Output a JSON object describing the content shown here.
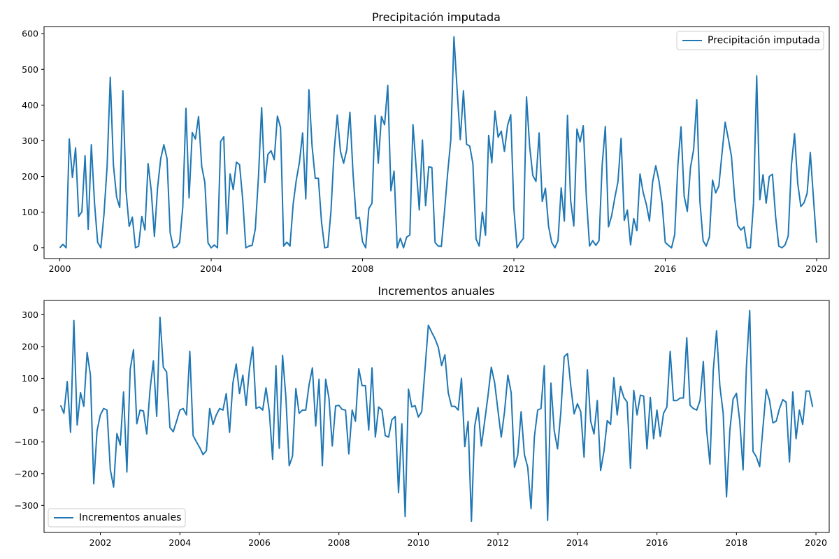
{
  "chart_data": [
    {
      "type": "line",
      "title": "Precipitación imputada",
      "xlabel": "",
      "ylabel": "",
      "x_start": "2000-01",
      "x_frequency": "monthly",
      "xlim": [
        "1999-08",
        "2020-05"
      ],
      "ylim": [
        -30,
        620
      ],
      "xticks": [
        "2000",
        "2004",
        "2008",
        "2012",
        "2016",
        "2020"
      ],
      "yticks": [
        "0",
        "100",
        "200",
        "300",
        "400",
        "500",
        "600"
      ],
      "legend": {
        "position": "top-right"
      },
      "grid": false,
      "series": [
        {
          "name": "Precipitación imputada",
          "color": "#1f77b4",
          "values": [
            0,
            10,
            0,
            305,
            197,
            280,
            88,
            101,
            258,
            52,
            289,
            126,
            15,
            0,
            93,
            228,
            478,
            232,
            143,
            113,
            440,
            160,
            60,
            86,
            0,
            5,
            88,
            50,
            236,
            160,
            32,
            168,
            250,
            289,
            250,
            42,
            0,
            3,
            15,
            115,
            391,
            140,
            323,
            305,
            368,
            228,
            183,
            14,
            0,
            8,
            0,
            298,
            311,
            39,
            207,
            163,
            240,
            233,
            136,
            0,
            5,
            7,
            53,
            199,
            393,
            183,
            262,
            272,
            247,
            369,
            337,
            5,
            16,
            5,
            122,
            190,
            240,
            322,
            137,
            443,
            285,
            195,
            195,
            72,
            0,
            2,
            104,
            272,
            372,
            270,
            237,
            275,
            380,
            207,
            82,
            85,
            17,
            0,
            110,
            125,
            371,
            237,
            368,
            345,
            455,
            160,
            215,
            0,
            27,
            0,
            30,
            36,
            345,
            226,
            106,
            302,
            118,
            227,
            225,
            15,
            5,
            4,
            103,
            210,
            303,
            591,
            442,
            303,
            440,
            290,
            285,
            236,
            25,
            5,
            100,
            35,
            315,
            238,
            383,
            310,
            327,
            270,
            343,
            373,
            110,
            0,
            15,
            26,
            423,
            284,
            203,
            186,
            322,
            130,
            167,
            60,
            15,
            0,
            20,
            168,
            75,
            371,
            132,
            61,
            333,
            297,
            342,
            139,
            5,
            20,
            7,
            20,
            232,
            340,
            59,
            90,
            140,
            185,
            307,
            77,
            106,
            8,
            82,
            48,
            207,
            155,
            122,
            75,
            185,
            230,
            188,
            125,
            15,
            7,
            0,
            37,
            231,
            339,
            145,
            102,
            225,
            275,
            415,
            130,
            20,
            5,
            30,
            190,
            154,
            173,
            265,
            352,
            306,
            256,
            140,
            62,
            50,
            59,
            0,
            0,
            126,
            482,
            135,
            205,
            125,
            200,
            206,
            88,
            5,
            0,
            8,
            33,
            230,
            320,
            182,
            116,
            126,
            153,
            267,
            140,
            14
          ]
        }
      ]
    },
    {
      "type": "line",
      "title": "Incrementos anuales",
      "xlabel": "",
      "ylabel": "",
      "x_start": "2001-01",
      "x_frequency": "monthly",
      "xlim": [
        "2000-08",
        "2020-05"
      ],
      "ylim": [
        -385,
        345
      ],
      "xticks": [
        "2002",
        "2004",
        "2006",
        "2008",
        "2010",
        "2012",
        "2014",
        "2016",
        "2018",
        "2020"
      ],
      "yticks": [
        "−300",
        "−200",
        "−100",
        "0",
        "100",
        "200",
        "300"
      ],
      "legend": {
        "position": "bottom-left"
      },
      "grid": false,
      "series": [
        {
          "name": "Incrementos anuales",
          "color": "#1f77b4",
          "values": [
            15,
            -10,
            90,
            -70,
            282,
            -47,
            55,
            12,
            181,
            110,
            -232,
            -65,
            -15,
            5,
            0,
            -187,
            -242,
            -74,
            -110,
            57,
            -195,
            128,
            190,
            -43,
            0,
            -3,
            -75,
            65,
            155,
            -20,
            292,
            135,
            120,
            -55,
            -68,
            -35,
            0,
            5,
            -15,
            185,
            -80,
            -100,
            -118,
            -140,
            -128,
            5,
            -45,
            -15,
            5,
            0,
            52,
            -70,
            85,
            145,
            52,
            110,
            15,
            130,
            199,
            5,
            10,
            0,
            70,
            -5,
            -155,
            140,
            -120,
            172,
            40,
            -175,
            -145,
            68,
            -10,
            0,
            0,
            80,
            133,
            -50,
            97,
            -175,
            97,
            38,
            -113,
            13,
            15,
            2,
            0,
            -138,
            0,
            -35,
            130,
            77,
            77,
            -63,
            133,
            -85,
            10,
            0,
            -80,
            -85,
            -30,
            -20,
            -260,
            -43,
            -335,
            66,
            10,
            14,
            -22,
            -5,
            130,
            267,
            245,
            225,
            198,
            140,
            174,
            55,
            12,
            12,
            0,
            100,
            -115,
            -35,
            -350,
            -50,
            8,
            -113,
            -35,
            45,
            135,
            87,
            0,
            -85,
            -5,
            110,
            55,
            -180,
            -140,
            -5,
            -140,
            -180,
            -310,
            -85,
            0,
            5,
            140,
            -347,
            85,
            -65,
            -122,
            -5,
            168,
            178,
            75,
            -12,
            20,
            -5,
            -148,
            127,
            -35,
            -75,
            30,
            -190,
            -130,
            -33,
            -45,
            102,
            -15,
            75,
            40,
            25,
            -183,
            62,
            -15,
            47,
            44,
            -122,
            40,
            -90,
            0,
            -83,
            -10,
            10,
            185,
            30,
            30,
            38,
            38,
            228,
            15,
            5,
            0,
            30,
            153,
            -62,
            -170,
            125,
            250,
            75,
            -10,
            -273,
            -65,
            35,
            53,
            -35,
            -188,
            135,
            313,
            -130,
            -147,
            -178,
            -55,
            65,
            30,
            -40,
            -35,
            5,
            33,
            25,
            -163,
            57,
            -90,
            0,
            -45,
            60,
            60,
            10
          ]
        }
      ]
    }
  ]
}
